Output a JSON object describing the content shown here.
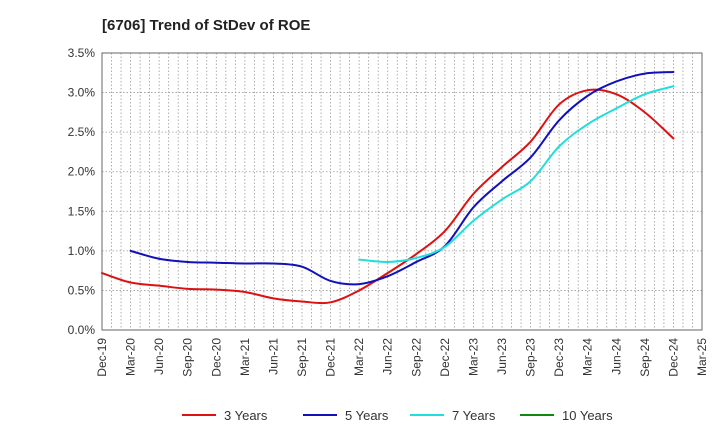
{
  "chart_data": {
    "type": "line",
    "title": "[6706]  Trend of StDev of ROE",
    "xlabel": "",
    "ylabel": "",
    "y_unit": "%",
    "ylim": [
      0,
      3.5
    ],
    "yticks": [
      "0.0%",
      "0.5%",
      "1.0%",
      "1.5%",
      "2.0%",
      "2.5%",
      "3.0%",
      "3.5%"
    ],
    "xticks": [
      "Dec-19",
      "Mar-20",
      "Jun-20",
      "Sep-20",
      "Dec-20",
      "Mar-21",
      "Jun-21",
      "Sep-21",
      "Dec-21",
      "Mar-22",
      "Jun-22",
      "Sep-22",
      "Dec-22",
      "Mar-23",
      "Jun-23",
      "Sep-23",
      "Dec-23",
      "Mar-24",
      "Jun-24",
      "Sep-24",
      "Dec-24",
      "Mar-25"
    ],
    "grid": true,
    "legend_position": "bottom",
    "series": [
      {
        "name": "3 Years",
        "color": "#dd1111",
        "values": [
          0.72,
          0.6,
          0.56,
          0.52,
          0.51,
          0.48,
          0.4,
          0.36,
          0.35,
          0.5,
          0.72,
          0.96,
          1.25,
          1.72,
          2.06,
          2.38,
          2.85,
          3.03,
          2.98,
          2.75,
          2.42,
          null
        ]
      },
      {
        "name": "5 Years",
        "color": "#1111bb",
        "values": [
          null,
          1.0,
          0.9,
          0.86,
          0.85,
          0.84,
          0.84,
          0.8,
          0.62,
          0.58,
          0.68,
          0.86,
          1.06,
          1.55,
          1.88,
          2.18,
          2.65,
          2.96,
          3.14,
          3.24,
          3.26,
          null
        ]
      },
      {
        "name": "7 Years",
        "color": "#22dddd",
        "values": [
          null,
          null,
          null,
          null,
          null,
          null,
          null,
          null,
          null,
          0.89,
          0.86,
          0.91,
          1.05,
          1.38,
          1.65,
          1.88,
          2.32,
          2.6,
          2.8,
          2.98,
          3.08,
          null
        ]
      },
      {
        "name": "10 Years",
        "color": "#118811",
        "values": [
          null,
          null,
          null,
          null,
          null,
          null,
          null,
          null,
          null,
          null,
          null,
          null,
          null,
          null,
          null,
          null,
          null,
          null,
          null,
          null,
          null,
          null
        ]
      }
    ]
  }
}
